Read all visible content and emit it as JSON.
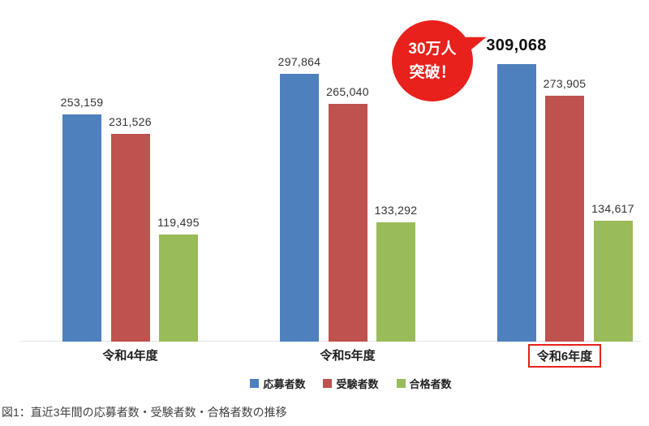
{
  "chart_data": {
    "type": "bar",
    "title": "",
    "categories": [
      "令和4年度",
      "令和5年度",
      "令和6年度"
    ],
    "series": [
      {
        "name": "応募者数",
        "key": "applicants",
        "color": "#4e80bd",
        "values": [
          253159,
          297864,
          309068
        ]
      },
      {
        "name": "受験者数",
        "key": "examinees",
        "color": "#bf514f",
        "values": [
          231526,
          265040,
          273905
        ]
      },
      {
        "name": "合格者数",
        "key": "passers",
        "color": "#9abb59",
        "values": [
          119495,
          133292,
          134617
        ]
      }
    ],
    "ylim": [
      0,
      309068
    ],
    "grid": false,
    "legend_position": "bottom",
    "value_labels": true,
    "emphasized_label": {
      "series_index": 0,
      "category_index": 2
    },
    "highlighted_category_index": 2,
    "highlight_color": "#e8211d"
  },
  "callout": {
    "line1": "30万人",
    "line2": "突破！",
    "bg_color": "#e8211d",
    "text_color": "#ffffff"
  },
  "caption": "図1：直近3年間の応募者数・受験者数・合格者数の推移"
}
